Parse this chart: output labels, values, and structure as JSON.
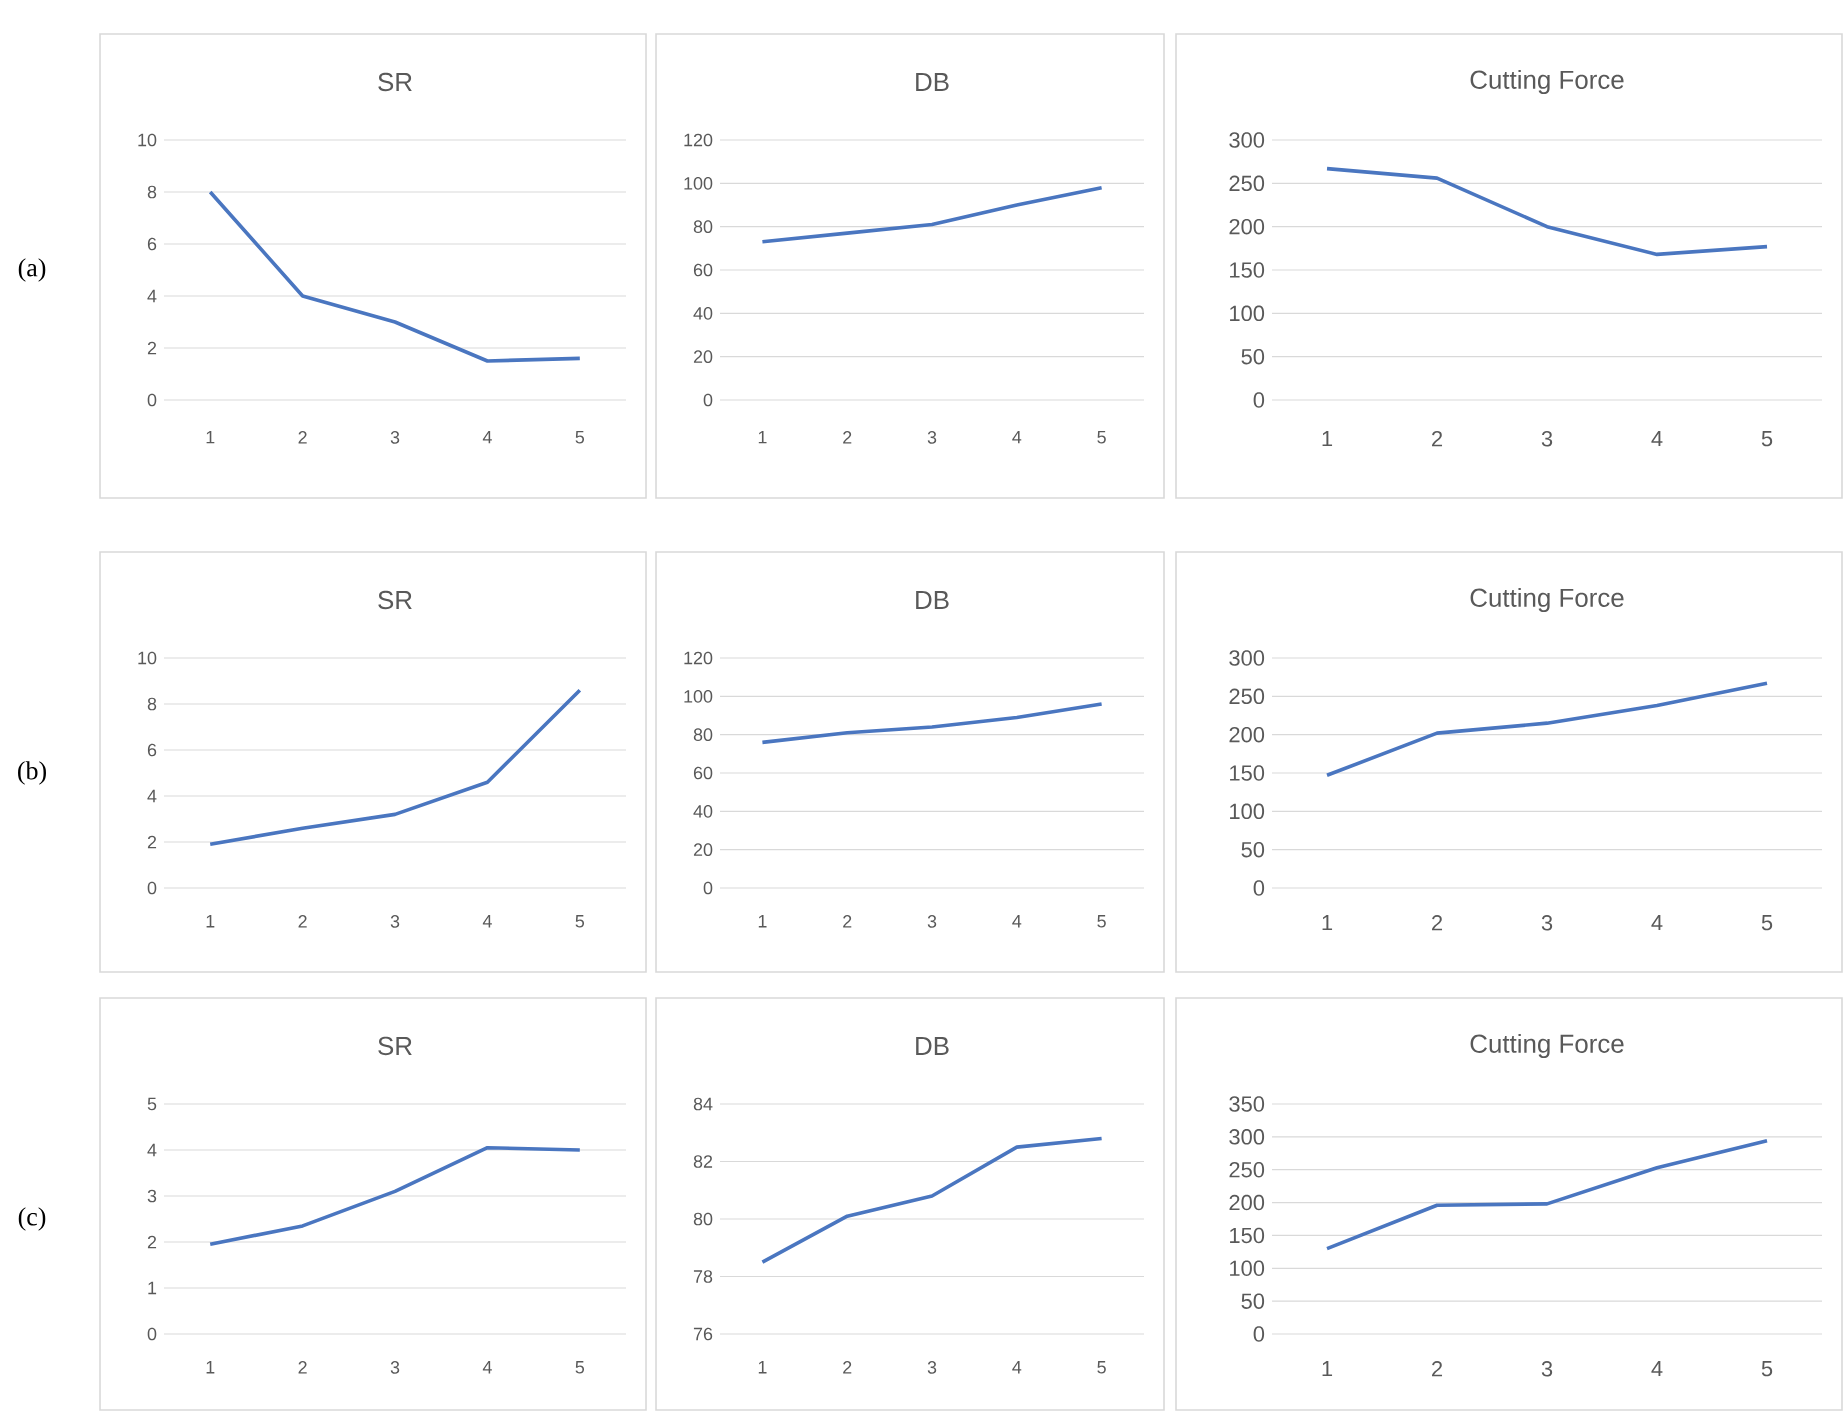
{
  "chart_data": [
    {
      "type": "line",
      "title": "SR",
      "annotations": [
        "(a)"
      ],
      "categories": [
        "1",
        "2",
        "3",
        "4",
        "5"
      ],
      "values": [
        8,
        4,
        3,
        1.5,
        1.6
      ],
      "color": "#4a76c0",
      "ylim": [
        0,
        10
      ],
      "yticks": [
        0,
        2,
        4,
        6,
        8,
        10
      ],
      "grid": "y"
    },
    {
      "type": "line",
      "title": "DB",
      "categories": [
        "1",
        "2",
        "3",
        "4",
        "5"
      ],
      "values": [
        73,
        77,
        81,
        90,
        98
      ],
      "color": "#4a76c0",
      "ylim": [
        0,
        120
      ],
      "yticks": [
        0,
        20,
        40,
        60,
        80,
        100,
        120
      ],
      "grid": "y"
    },
    {
      "type": "line",
      "title": "Cutting Force",
      "categories": [
        "1",
        "2",
        "3",
        "4",
        "5"
      ],
      "values": [
        267,
        256,
        200,
        168,
        177
      ],
      "color": "#4a76c0",
      "ylim": [
        0,
        300
      ],
      "yticks": [
        0,
        50,
        100,
        150,
        200,
        250,
        300
      ],
      "grid": "y"
    },
    {
      "type": "line",
      "title": "SR",
      "annotations": [
        "(b)"
      ],
      "categories": [
        "1",
        "2",
        "3",
        "4",
        "5"
      ],
      "values": [
        1.9,
        2.6,
        3.2,
        4.6,
        8.6
      ],
      "color": "#4a76c0",
      "ylim": [
        0,
        10
      ],
      "yticks": [
        0,
        2,
        4,
        6,
        8,
        10
      ],
      "grid": "y"
    },
    {
      "type": "line",
      "title": "DB",
      "categories": [
        "1",
        "2",
        "3",
        "4",
        "5"
      ],
      "values": [
        76,
        81,
        84,
        89,
        96
      ],
      "color": "#4a76c0",
      "ylim": [
        0,
        120
      ],
      "yticks": [
        0,
        20,
        40,
        60,
        80,
        100,
        120
      ],
      "grid": "y"
    },
    {
      "type": "line",
      "title": "Cutting Force",
      "categories": [
        "1",
        "2",
        "3",
        "4",
        "5"
      ],
      "values": [
        147,
        202,
        215,
        238,
        267
      ],
      "color": "#4a76c0",
      "ylim": [
        0,
        300
      ],
      "yticks": [
        0,
        50,
        100,
        150,
        200,
        250,
        300
      ],
      "grid": "y"
    },
    {
      "type": "line",
      "title": "SR",
      "annotations": [
        "(c)"
      ],
      "categories": [
        "1",
        "2",
        "3",
        "4",
        "5"
      ],
      "values": [
        1.95,
        2.35,
        3.1,
        4.05,
        4.0
      ],
      "color": "#4a76c0",
      "ylim": [
        0,
        5
      ],
      "yticks": [
        0,
        1,
        2,
        3,
        4,
        5
      ],
      "grid": "y"
    },
    {
      "type": "line",
      "title": "DB",
      "categories": [
        "1",
        "2",
        "3",
        "4",
        "5"
      ],
      "values": [
        78.5,
        80.1,
        80.8,
        82.5,
        82.8
      ],
      "color": "#4a76c0",
      "ylim": [
        76,
        84
      ],
      "yticks": [
        76,
        78,
        80,
        82,
        84
      ],
      "grid": "y"
    },
    {
      "type": "line",
      "title": "Cutting Force",
      "categories": [
        "1",
        "2",
        "3",
        "4",
        "5"
      ],
      "values": [
        130,
        196,
        198,
        253,
        294
      ],
      "color": "#4a76c0",
      "ylim": [
        0,
        350
      ],
      "yticks": [
        0,
        50,
        100,
        150,
        200,
        250,
        300,
        350
      ],
      "grid": "y"
    }
  ]
}
